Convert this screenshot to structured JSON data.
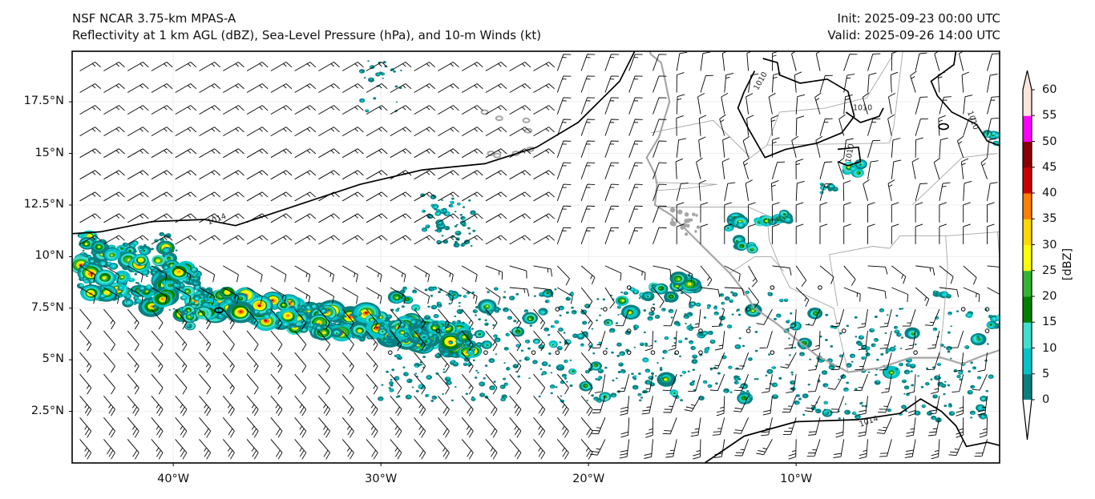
{
  "header": {
    "title_line1": "NSF NCAR 3.75-km MPAS-A",
    "title_line2": "Reflectivity at 1 km AGL (dBZ), Sea-Level Pressure (hPa), and 10-m Winds (kt)",
    "init": "Init: 2025-09-23 00:00 UTC",
    "valid": "Valid: 2025-09-26 14:00 UTC"
  },
  "map": {
    "extent_lon": [
      -44.87,
      -0.2
    ],
    "extent_lat": [
      0.0,
      19.95
    ],
    "lat_ticks": [
      {
        "value": 17.5,
        "label": "17.5°N"
      },
      {
        "value": 15,
        "label": "15°N"
      },
      {
        "value": 12.5,
        "label": "12.5°N"
      },
      {
        "value": 10,
        "label": "10°N"
      },
      {
        "value": 7.5,
        "label": "7.5°N"
      },
      {
        "value": 5,
        "label": "5°N"
      },
      {
        "value": 2.5,
        "label": "2.5°N"
      }
    ],
    "lon_ticks": [
      {
        "value": -40,
        "label": "40°W"
      },
      {
        "value": -30,
        "label": "30°W"
      },
      {
        "value": -20,
        "label": "20°W"
      },
      {
        "value": -10,
        "label": "10°W"
      }
    ],
    "isobar_labels": [
      {
        "text": "1014",
        "lon": -37.9,
        "lat": 11.8,
        "angle": -20
      },
      {
        "text": "1010",
        "lon": -11.7,
        "lat": 18.5,
        "angle": -60
      },
      {
        "text": "1010",
        "lon": -6.8,
        "lat": 17.2,
        "angle": 0
      },
      {
        "text": "1010",
        "lon": -1.5,
        "lat": 16.6,
        "angle": 70
      },
      {
        "text": "1010",
        "lon": -7.4,
        "lat": 15.0,
        "angle": -80
      },
      {
        "text": "1014",
        "lon": -6.5,
        "lat": 2.0,
        "angle": -20
      }
    ],
    "colors": {
      "isobar": "#000000",
      "coastline": "#a6a6a6",
      "border": "#a6a6a6",
      "barb": "#000000",
      "gridline": "#eeeeee"
    }
  },
  "colorbar": {
    "label": "[dBZ]",
    "levels": [
      0,
      5,
      10,
      15,
      20,
      25,
      30,
      35,
      40,
      45,
      50,
      55,
      60
    ],
    "tick_labels": [
      "0",
      "5",
      "10",
      "15",
      "20",
      "25",
      "30",
      "35",
      "40",
      "45",
      "50",
      "55",
      "60"
    ],
    "colors": [
      "#0b7f7f",
      "#00c4cc",
      "#40e0d0",
      "#008000",
      "#32b432",
      "#ffff00",
      "#ffd700",
      "#ff7f00",
      "#cc0000",
      "#8b0000",
      "#ff00ff",
      "#ffe4dc"
    ],
    "under_color": "#ffffff",
    "over_color": "#ffe4dc"
  }
}
